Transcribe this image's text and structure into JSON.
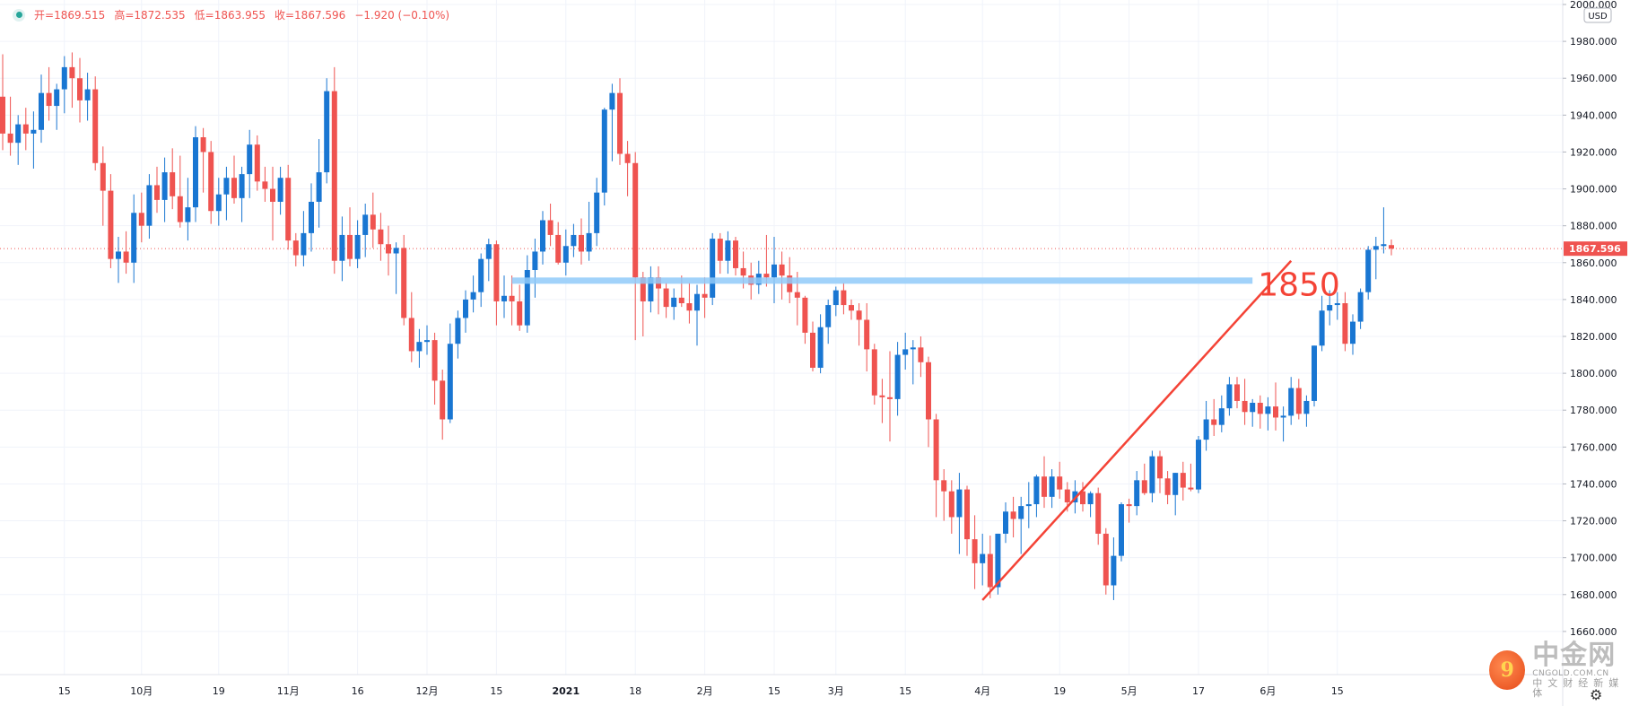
{
  "ohlc": {
    "open_label": "开=",
    "open": "1869.515",
    "high_label": "高=",
    "high": "1872.535",
    "low_label": "低=",
    "low": "1863.955",
    "close_label": "收=",
    "close": "1867.596",
    "change": "−1.920 (−0.10%)"
  },
  "currency_label": "USD",
  "icons": {
    "status": "status-dot-icon",
    "settings": "gear-icon"
  },
  "colors": {
    "up": "#1976d2",
    "down": "#ef5350",
    "support": "#90caf9",
    "trendline": "#f44336",
    "price_tag": "#ef5350"
  },
  "watermark": {
    "logo_glyph": "9",
    "title": "中金网",
    "domain": "CNGOLD.COM.CN",
    "subtitle": "中文财经新媒体"
  },
  "annotation": {
    "label": "1850"
  },
  "chart_data": {
    "type": "candlestick",
    "y_axis": {
      "min": 1640,
      "max": 2000,
      "side": "right",
      "ticks": [
        2000,
        1980,
        1960,
        1940,
        1920,
        1900,
        1880,
        1860,
        1840,
        1820,
        1800,
        1780,
        1760,
        1740,
        1720,
        1700,
        1680,
        1660
      ],
      "tick_labels": [
        "2000.000",
        "1980.000",
        "1960.000",
        "1940.000",
        "1920.000",
        "1900.000",
        "1880.000",
        "1860.000",
        "1840.000",
        "1820.000",
        "1800.000",
        "1780.000",
        "1760.000",
        "1740.000",
        "1720.000",
        "1700.000",
        "1680.000",
        "1660.000"
      ]
    },
    "x_axis": {
      "labels": [
        "15",
        "10月",
        "19",
        "11月",
        "16",
        "12月",
        "15",
        "2021",
        "18",
        "2月",
        "15",
        "3月",
        "15",
        "4月",
        "19",
        "5月",
        "17",
        "6月",
        "15"
      ],
      "label_bar_index": [
        8,
        18,
        28,
        37,
        46,
        55,
        64,
        73,
        82,
        91,
        100,
        108,
        117,
        127,
        137,
        146,
        155,
        164,
        173
      ]
    },
    "grid": true,
    "last_price": {
      "value": 1867.596,
      "label": "1867.596"
    },
    "support_level": {
      "value": 1850,
      "from_bar": 66,
      "to_bar": 162
    },
    "trendline": {
      "from_bar": 127,
      "from_value": 1677,
      "to_bar": 167,
      "to_value": 1861
    },
    "candles": [
      {
        "o": 1950,
        "h": 1973,
        "l": 1921,
        "c": 1930
      },
      {
        "o": 1930,
        "h": 1950,
        "l": 1918,
        "c": 1925
      },
      {
        "o": 1925,
        "h": 1940,
        "l": 1913,
        "c": 1935
      },
      {
        "o": 1935,
        "h": 1944,
        "l": 1921,
        "c": 1930
      },
      {
        "o": 1930,
        "h": 1942,
        "l": 1911,
        "c": 1932
      },
      {
        "o": 1932,
        "h": 1962,
        "l": 1925,
        "c": 1952
      },
      {
        "o": 1952,
        "h": 1966,
        "l": 1937,
        "c": 1945
      },
      {
        "o": 1945,
        "h": 1957,
        "l": 1932,
        "c": 1954
      },
      {
        "o": 1954,
        "h": 1972,
        "l": 1941,
        "c": 1966
      },
      {
        "o": 1966,
        "h": 1974,
        "l": 1944,
        "c": 1960
      },
      {
        "o": 1960,
        "h": 1971,
        "l": 1936,
        "c": 1948
      },
      {
        "o": 1948,
        "h": 1963,
        "l": 1937,
        "c": 1954
      },
      {
        "o": 1954,
        "h": 1961,
        "l": 1910,
        "c": 1914
      },
      {
        "o": 1914,
        "h": 1923,
        "l": 1880,
        "c": 1899
      },
      {
        "o": 1899,
        "h": 1908,
        "l": 1857,
        "c": 1862
      },
      {
        "o": 1862,
        "h": 1874,
        "l": 1849,
        "c": 1866
      },
      {
        "o": 1866,
        "h": 1877,
        "l": 1854,
        "c": 1860
      },
      {
        "o": 1860,
        "h": 1897,
        "l": 1849,
        "c": 1887
      },
      {
        "o": 1887,
        "h": 1898,
        "l": 1871,
        "c": 1880
      },
      {
        "o": 1880,
        "h": 1908,
        "l": 1873,
        "c": 1902
      },
      {
        "o": 1902,
        "h": 1912,
        "l": 1887,
        "c": 1894
      },
      {
        "o": 1894,
        "h": 1917,
        "l": 1882,
        "c": 1909
      },
      {
        "o": 1909,
        "h": 1922,
        "l": 1889,
        "c": 1896
      },
      {
        "o": 1896,
        "h": 1918,
        "l": 1879,
        "c": 1882
      },
      {
        "o": 1882,
        "h": 1906,
        "l": 1872,
        "c": 1890
      },
      {
        "o": 1890,
        "h": 1934,
        "l": 1882,
        "c": 1928
      },
      {
        "o": 1928,
        "h": 1933,
        "l": 1898,
        "c": 1920
      },
      {
        "o": 1920,
        "h": 1926,
        "l": 1881,
        "c": 1888
      },
      {
        "o": 1888,
        "h": 1906,
        "l": 1880,
        "c": 1897
      },
      {
        "o": 1897,
        "h": 1912,
        "l": 1883,
        "c": 1906
      },
      {
        "o": 1906,
        "h": 1918,
        "l": 1892,
        "c": 1895
      },
      {
        "o": 1895,
        "h": 1912,
        "l": 1882,
        "c": 1908
      },
      {
        "o": 1908,
        "h": 1932,
        "l": 1895,
        "c": 1924
      },
      {
        "o": 1924,
        "h": 1929,
        "l": 1899,
        "c": 1904
      },
      {
        "o": 1904,
        "h": 1912,
        "l": 1893,
        "c": 1900
      },
      {
        "o": 1900,
        "h": 1912,
        "l": 1872,
        "c": 1893
      },
      {
        "o": 1893,
        "h": 1912,
        "l": 1886,
        "c": 1906
      },
      {
        "o": 1906,
        "h": 1913,
        "l": 1867,
        "c": 1872
      },
      {
        "o": 1872,
        "h": 1876,
        "l": 1858,
        "c": 1864
      },
      {
        "o": 1864,
        "h": 1888,
        "l": 1858,
        "c": 1876
      },
      {
        "o": 1876,
        "h": 1903,
        "l": 1866,
        "c": 1893
      },
      {
        "o": 1893,
        "h": 1927,
        "l": 1879,
        "c": 1909
      },
      {
        "o": 1909,
        "h": 1960,
        "l": 1903,
        "c": 1953
      },
      {
        "o": 1953,
        "h": 1966,
        "l": 1854,
        "c": 1861
      },
      {
        "o": 1861,
        "h": 1885,
        "l": 1850,
        "c": 1875
      },
      {
        "o": 1875,
        "h": 1890,
        "l": 1858,
        "c": 1862
      },
      {
        "o": 1862,
        "h": 1883,
        "l": 1857,
        "c": 1875
      },
      {
        "o": 1875,
        "h": 1892,
        "l": 1863,
        "c": 1886
      },
      {
        "o": 1886,
        "h": 1898,
        "l": 1868,
        "c": 1878
      },
      {
        "o": 1878,
        "h": 1887,
        "l": 1861,
        "c": 1870
      },
      {
        "o": 1870,
        "h": 1880,
        "l": 1853,
        "c": 1865
      },
      {
        "o": 1865,
        "h": 1871,
        "l": 1843,
        "c": 1868
      },
      {
        "o": 1868,
        "h": 1875,
        "l": 1826,
        "c": 1830
      },
      {
        "o": 1830,
        "h": 1844,
        "l": 1806,
        "c": 1812
      },
      {
        "o": 1812,
        "h": 1824,
        "l": 1803,
        "c": 1817
      },
      {
        "o": 1817,
        "h": 1826,
        "l": 1810,
        "c": 1818
      },
      {
        "o": 1818,
        "h": 1822,
        "l": 1783,
        "c": 1796
      },
      {
        "o": 1796,
        "h": 1802,
        "l": 1764,
        "c": 1775
      },
      {
        "o": 1775,
        "h": 1827,
        "l": 1773,
        "c": 1816
      },
      {
        "o": 1816,
        "h": 1834,
        "l": 1808,
        "c": 1830
      },
      {
        "o": 1830,
        "h": 1845,
        "l": 1822,
        "c": 1840
      },
      {
        "o": 1840,
        "h": 1853,
        "l": 1833,
        "c": 1844
      },
      {
        "o": 1844,
        "h": 1865,
        "l": 1836,
        "c": 1862
      },
      {
        "o": 1862,
        "h": 1873,
        "l": 1850,
        "c": 1870
      },
      {
        "o": 1870,
        "h": 1872,
        "l": 1826,
        "c": 1839
      },
      {
        "o": 1839,
        "h": 1853,
        "l": 1830,
        "c": 1842
      },
      {
        "o": 1842,
        "h": 1853,
        "l": 1826,
        "c": 1839
      },
      {
        "o": 1839,
        "h": 1848,
        "l": 1823,
        "c": 1826
      },
      {
        "o": 1826,
        "h": 1864,
        "l": 1822,
        "c": 1856
      },
      {
        "o": 1856,
        "h": 1873,
        "l": 1841,
        "c": 1866
      },
      {
        "o": 1866,
        "h": 1888,
        "l": 1859,
        "c": 1883
      },
      {
        "o": 1883,
        "h": 1892,
        "l": 1869,
        "c": 1875
      },
      {
        "o": 1875,
        "h": 1882,
        "l": 1859,
        "c": 1860
      },
      {
        "o": 1860,
        "h": 1878,
        "l": 1853,
        "c": 1869
      },
      {
        "o": 1869,
        "h": 1881,
        "l": 1863,
        "c": 1875
      },
      {
        "o": 1875,
        "h": 1884,
        "l": 1859,
        "c": 1866
      },
      {
        "o": 1866,
        "h": 1893,
        "l": 1861,
        "c": 1876
      },
      {
        "o": 1876,
        "h": 1906,
        "l": 1869,
        "c": 1898
      },
      {
        "o": 1898,
        "h": 1944,
        "l": 1891,
        "c": 1943
      },
      {
        "o": 1943,
        "h": 1957,
        "l": 1915,
        "c": 1952
      },
      {
        "o": 1952,
        "h": 1960,
        "l": 1913,
        "c": 1919
      },
      {
        "o": 1919,
        "h": 1926,
        "l": 1896,
        "c": 1914
      },
      {
        "o": 1914,
        "h": 1920,
        "l": 1818,
        "c": 1852
      },
      {
        "o": 1852,
        "h": 1855,
        "l": 1820,
        "c": 1839
      },
      {
        "o": 1839,
        "h": 1858,
        "l": 1833,
        "c": 1852
      },
      {
        "o": 1852,
        "h": 1858,
        "l": 1832,
        "c": 1846
      },
      {
        "o": 1846,
        "h": 1849,
        "l": 1830,
        "c": 1836
      },
      {
        "o": 1836,
        "h": 1846,
        "l": 1829,
        "c": 1841
      },
      {
        "o": 1841,
        "h": 1853,
        "l": 1836,
        "c": 1838
      },
      {
        "o": 1838,
        "h": 1849,
        "l": 1827,
        "c": 1834
      },
      {
        "o": 1834,
        "h": 1848,
        "l": 1815,
        "c": 1843
      },
      {
        "o": 1843,
        "h": 1852,
        "l": 1830,
        "c": 1841
      },
      {
        "o": 1841,
        "h": 1876,
        "l": 1837,
        "c": 1873
      },
      {
        "o": 1873,
        "h": 1876,
        "l": 1854,
        "c": 1861
      },
      {
        "o": 1861,
        "h": 1877,
        "l": 1854,
        "c": 1872
      },
      {
        "o": 1872,
        "h": 1874,
        "l": 1853,
        "c": 1857
      },
      {
        "o": 1857,
        "h": 1866,
        "l": 1846,
        "c": 1853
      },
      {
        "o": 1853,
        "h": 1860,
        "l": 1840,
        "c": 1848
      },
      {
        "o": 1848,
        "h": 1861,
        "l": 1843,
        "c": 1854
      },
      {
        "o": 1854,
        "h": 1875,
        "l": 1847,
        "c": 1852
      },
      {
        "o": 1852,
        "h": 1874,
        "l": 1838,
        "c": 1859
      },
      {
        "o": 1859,
        "h": 1866,
        "l": 1840,
        "c": 1853
      },
      {
        "o": 1853,
        "h": 1863,
        "l": 1838,
        "c": 1844
      },
      {
        "o": 1844,
        "h": 1855,
        "l": 1826,
        "c": 1841
      },
      {
        "o": 1841,
        "h": 1842,
        "l": 1816,
        "c": 1822
      },
      {
        "o": 1822,
        "h": 1828,
        "l": 1801,
        "c": 1803
      },
      {
        "o": 1803,
        "h": 1832,
        "l": 1800,
        "c": 1825
      },
      {
        "o": 1825,
        "h": 1840,
        "l": 1816,
        "c": 1837
      },
      {
        "o": 1837,
        "h": 1847,
        "l": 1831,
        "c": 1845
      },
      {
        "o": 1845,
        "h": 1849,
        "l": 1832,
        "c": 1837
      },
      {
        "o": 1837,
        "h": 1840,
        "l": 1829,
        "c": 1834
      },
      {
        "o": 1834,
        "h": 1838,
        "l": 1815,
        "c": 1829
      },
      {
        "o": 1829,
        "h": 1838,
        "l": 1801,
        "c": 1813
      },
      {
        "o": 1813,
        "h": 1816,
        "l": 1783,
        "c": 1788
      },
      {
        "o": 1788,
        "h": 1797,
        "l": 1773,
        "c": 1787
      },
      {
        "o": 1787,
        "h": 1812,
        "l": 1763,
        "c": 1786
      },
      {
        "o": 1786,
        "h": 1817,
        "l": 1777,
        "c": 1810
      },
      {
        "o": 1810,
        "h": 1822,
        "l": 1802,
        "c": 1813
      },
      {
        "o": 1813,
        "h": 1818,
        "l": 1794,
        "c": 1814
      },
      {
        "o": 1814,
        "h": 1820,
        "l": 1798,
        "c": 1806
      },
      {
        "o": 1806,
        "h": 1809,
        "l": 1760,
        "c": 1775
      },
      {
        "o": 1775,
        "h": 1778,
        "l": 1722,
        "c": 1742
      },
      {
        "o": 1742,
        "h": 1748,
        "l": 1720,
        "c": 1736
      },
      {
        "o": 1736,
        "h": 1742,
        "l": 1713,
        "c": 1722
      },
      {
        "o": 1722,
        "h": 1746,
        "l": 1702,
        "c": 1737
      },
      {
        "o": 1737,
        "h": 1739,
        "l": 1701,
        "c": 1710
      },
      {
        "o": 1710,
        "h": 1723,
        "l": 1683,
        "c": 1697
      },
      {
        "o": 1697,
        "h": 1713,
        "l": 1685,
        "c": 1702
      },
      {
        "o": 1702,
        "h": 1712,
        "l": 1678,
        "c": 1684
      },
      {
        "o": 1684,
        "h": 1713,
        "l": 1680,
        "c": 1713
      },
      {
        "o": 1713,
        "h": 1730,
        "l": 1708,
        "c": 1725
      },
      {
        "o": 1725,
        "h": 1733,
        "l": 1711,
        "c": 1721
      },
      {
        "o": 1721,
        "h": 1733,
        "l": 1702,
        "c": 1728
      },
      {
        "o": 1728,
        "h": 1741,
        "l": 1716,
        "c": 1729
      },
      {
        "o": 1729,
        "h": 1745,
        "l": 1722,
        "c": 1744
      },
      {
        "o": 1744,
        "h": 1755,
        "l": 1727,
        "c": 1733
      },
      {
        "o": 1733,
        "h": 1748,
        "l": 1727,
        "c": 1744
      },
      {
        "o": 1744,
        "h": 1752,
        "l": 1732,
        "c": 1737
      },
      {
        "o": 1737,
        "h": 1741,
        "l": 1725,
        "c": 1730
      },
      {
        "o": 1730,
        "h": 1742,
        "l": 1724,
        "c": 1736
      },
      {
        "o": 1736,
        "h": 1741,
        "l": 1725,
        "c": 1729
      },
      {
        "o": 1729,
        "h": 1736,
        "l": 1722,
        "c": 1735
      },
      {
        "o": 1735,
        "h": 1738,
        "l": 1707,
        "c": 1713
      },
      {
        "o": 1713,
        "h": 1716,
        "l": 1680,
        "c": 1685
      },
      {
        "o": 1685,
        "h": 1711,
        "l": 1677,
        "c": 1701
      },
      {
        "o": 1701,
        "h": 1730,
        "l": 1698,
        "c": 1729
      },
      {
        "o": 1729,
        "h": 1732,
        "l": 1719,
        "c": 1728
      },
      {
        "o": 1728,
        "h": 1747,
        "l": 1723,
        "c": 1742
      },
      {
        "o": 1742,
        "h": 1751,
        "l": 1734,
        "c": 1735
      },
      {
        "o": 1735,
        "h": 1758,
        "l": 1730,
        "c": 1755
      },
      {
        "o": 1755,
        "h": 1758,
        "l": 1735,
        "c": 1743
      },
      {
        "o": 1743,
        "h": 1747,
        "l": 1729,
        "c": 1734
      },
      {
        "o": 1734,
        "h": 1746,
        "l": 1723,
        "c": 1746
      },
      {
        "o": 1746,
        "h": 1752,
        "l": 1731,
        "c": 1738
      },
      {
        "o": 1738,
        "h": 1751,
        "l": 1736,
        "c": 1737
      },
      {
        "o": 1737,
        "h": 1766,
        "l": 1735,
        "c": 1764
      },
      {
        "o": 1764,
        "h": 1785,
        "l": 1758,
        "c": 1775
      },
      {
        "o": 1775,
        "h": 1786,
        "l": 1766,
        "c": 1772
      },
      {
        "o": 1772,
        "h": 1788,
        "l": 1768,
        "c": 1781
      },
      {
        "o": 1781,
        "h": 1798,
        "l": 1777,
        "c": 1794
      },
      {
        "o": 1794,
        "h": 1798,
        "l": 1781,
        "c": 1785
      },
      {
        "o": 1785,
        "h": 1797,
        "l": 1772,
        "c": 1779
      },
      {
        "o": 1779,
        "h": 1786,
        "l": 1771,
        "c": 1784
      },
      {
        "o": 1784,
        "h": 1788,
        "l": 1770,
        "c": 1778
      },
      {
        "o": 1778,
        "h": 1787,
        "l": 1769,
        "c": 1782
      },
      {
        "o": 1782,
        "h": 1795,
        "l": 1769,
        "c": 1776
      },
      {
        "o": 1776,
        "h": 1782,
        "l": 1763,
        "c": 1777
      },
      {
        "o": 1777,
        "h": 1798,
        "l": 1772,
        "c": 1792
      },
      {
        "o": 1792,
        "h": 1797,
        "l": 1775,
        "c": 1778
      },
      {
        "o": 1778,
        "h": 1788,
        "l": 1771,
        "c": 1785
      },
      {
        "o": 1785,
        "h": 1815,
        "l": 1782,
        "c": 1815
      },
      {
        "o": 1815,
        "h": 1842,
        "l": 1812,
        "c": 1834
      },
      {
        "o": 1834,
        "h": 1845,
        "l": 1826,
        "c": 1837
      },
      {
        "o": 1837,
        "h": 1844,
        "l": 1829,
        "c": 1838
      },
      {
        "o": 1838,
        "h": 1844,
        "l": 1812,
        "c": 1816
      },
      {
        "o": 1816,
        "h": 1832,
        "l": 1810,
        "c": 1828
      },
      {
        "o": 1828,
        "h": 1846,
        "l": 1824,
        "c": 1844
      },
      {
        "o": 1844,
        "h": 1869,
        "l": 1840,
        "c": 1867
      },
      {
        "o": 1867,
        "h": 1874,
        "l": 1851,
        "c": 1869
      },
      {
        "o": 1869,
        "h": 1890,
        "l": 1865,
        "c": 1870
      },
      {
        "o": 1869.515,
        "h": 1872.535,
        "l": 1863.955,
        "c": 1867.596
      }
    ]
  }
}
